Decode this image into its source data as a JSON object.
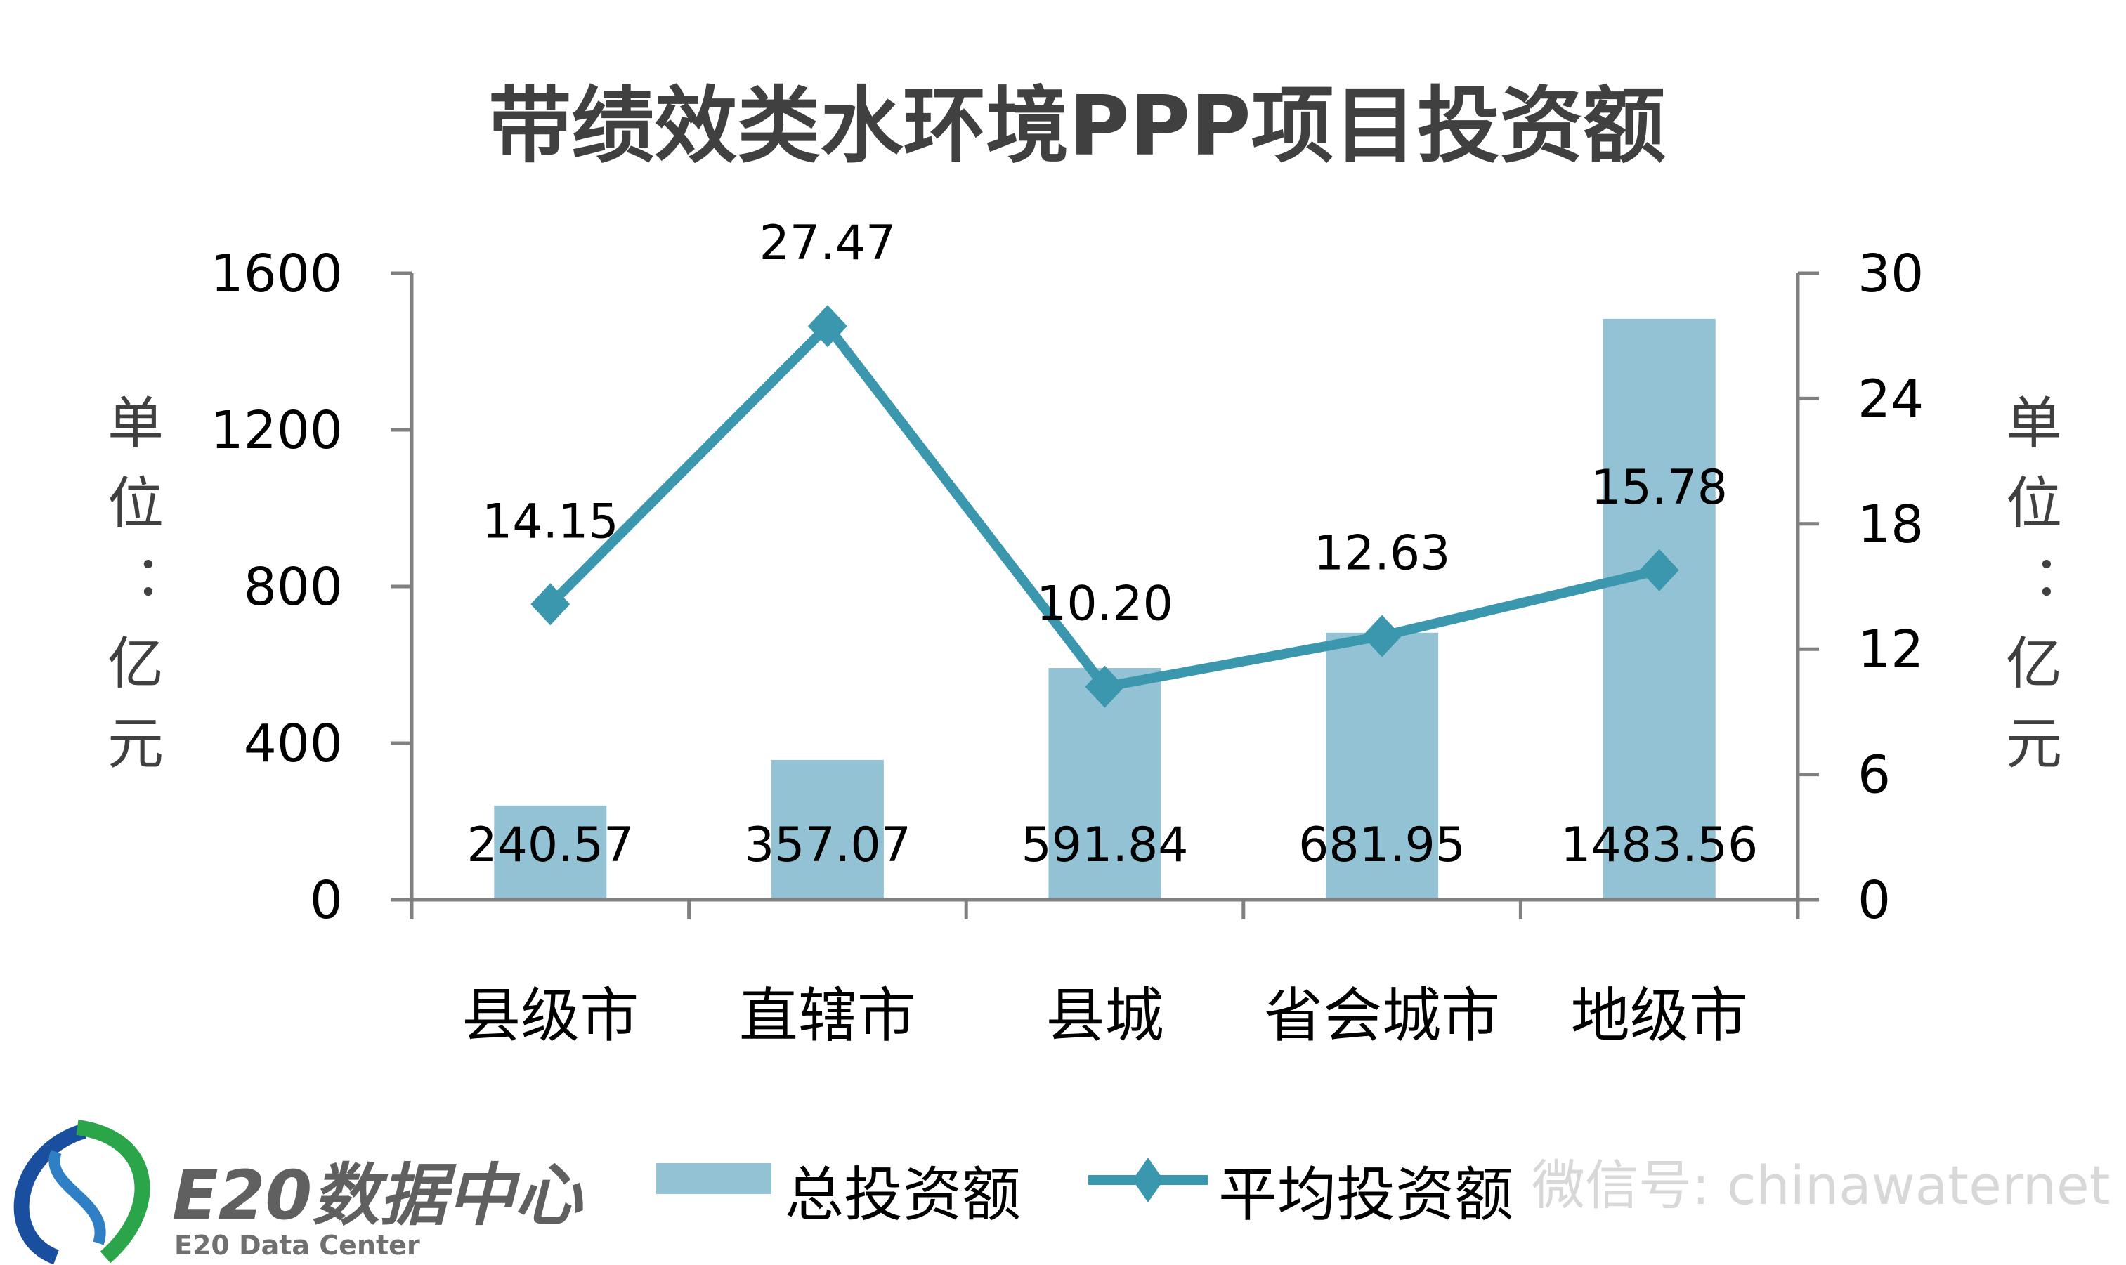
{
  "chart_data": {
    "type": "bar",
    "title": "带绩效类水环境PPP项目投资额",
    "categories": [
      "县级市",
      "直辖市",
      "县城",
      "省会城市",
      "地级市"
    ],
    "series": [
      {
        "name": "总投资额",
        "type": "bar",
        "axis": "left",
        "values": [
          240.57,
          357.07,
          591.84,
          681.95,
          1483.56
        ],
        "labels": [
          "240.57",
          "357.07",
          "591.84",
          "681.95",
          "1483.56"
        ],
        "color": "#92c2d3"
      },
      {
        "name": "平均投资额",
        "type": "line",
        "axis": "right",
        "marker": "diamond",
        "values": [
          14.15,
          27.47,
          10.2,
          12.63,
          15.78
        ],
        "labels": [
          "14.15",
          "27.47",
          "10.20",
          "12.63",
          "15.78"
        ],
        "color": "#3b97ae"
      }
    ],
    "y_left": {
      "label": "单位：亿元",
      "range": [
        0,
        1600
      ],
      "ticks": [
        "0",
        "400",
        "800",
        "1200",
        "1600"
      ]
    },
    "y_right": {
      "label": "单位：亿元",
      "range": [
        0,
        30
      ],
      "ticks": [
        "0",
        "6",
        "12",
        "18",
        "24",
        "30"
      ]
    },
    "grid": false,
    "legend": "bottom"
  },
  "logo": {
    "name": "E20数据中心",
    "subtitle": "E20 Data Center"
  },
  "watermark": "微信号: chinawaternet",
  "colors": {
    "bar": "#92c2d3",
    "line": "#3b97ae",
    "axis": "#808080",
    "title": "#404040"
  }
}
